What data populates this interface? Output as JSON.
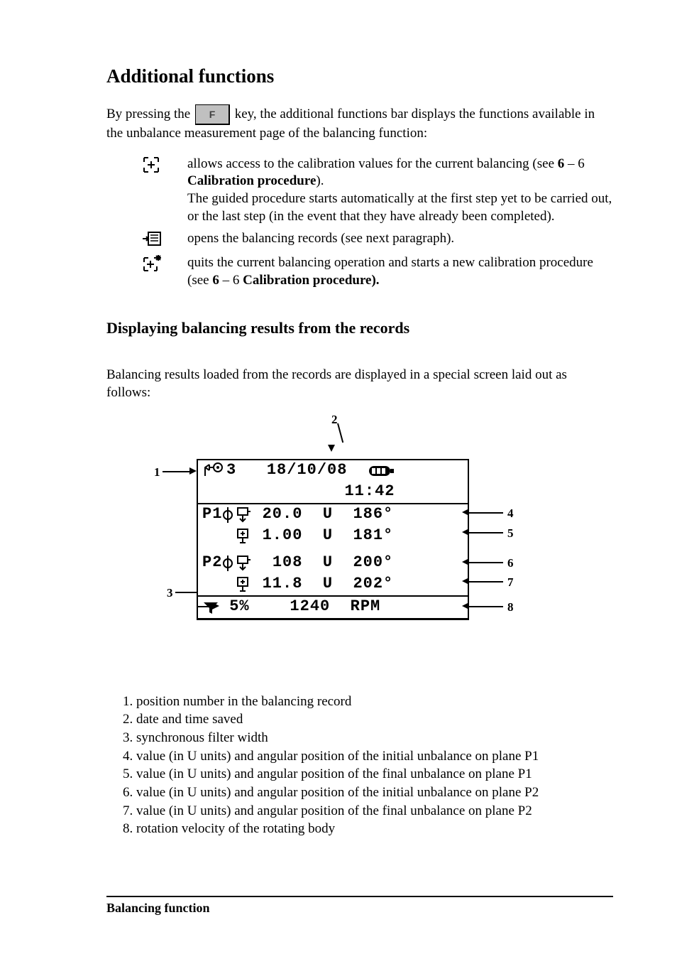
{
  "title": "Additional functions",
  "intro": {
    "before_key": "By pressing the ",
    "key_label": "F",
    "after_key": " key,  the additional functions bar displays the functions available in the unbalance measurement page of the balancing function:"
  },
  "functions": [
    {
      "icon": "crosshair-icon",
      "html": "allows access to the calibration values for the current balancing (see <b>6</b> – 6 <b>Calibration procedure</b>).<br>The guided procedure starts automatically at the first step yet to be carried out, or the last step (in the event that they have already been completed)."
    },
    {
      "icon": "records-icon",
      "html": "opens the balancing records (see next paragraph)."
    },
    {
      "icon": "crosshair-star-icon",
      "html": "quits the current balancing operation and starts a new calibration procedure (see <b>6</b> – 6 <b>Calibration procedure).</b>"
    }
  ],
  "subheading": "Displaying balancing results from the records",
  "display_intro": "Balancing results loaded from the records are displayed in a special screen laid out as follows:",
  "lcd": {
    "record_num": "3",
    "date": "18/10/08",
    "time": "11:42",
    "p1_initial_value": "20.0",
    "p1_initial_unit": "U",
    "p1_initial_angle": "186°",
    "p1_final_value": "1.00",
    "p1_final_unit": "U",
    "p1_final_angle": "181°",
    "p2_initial_value": "108",
    "p2_initial_unit": "U",
    "p2_initial_angle": "200°",
    "p2_final_value": "11.8",
    "p2_final_unit": "U",
    "p2_final_angle": "202°",
    "filter_width": "5%",
    "rpm_value": "1240",
    "rpm_label": "RPM"
  },
  "callouts": [
    "1",
    "2",
    "3",
    "4",
    "5",
    "6",
    "7",
    "8"
  ],
  "legend": [
    "position number in the balancing record",
    "date and time saved",
    "synchronous filter width",
    "value (in U units) and angular position of the initial unbalance on plane P1",
    "value (in U units) and angular position of the final unbalance on plane P1",
    "value (in U units) and angular position of the initial unbalance on plane P2",
    "value (in U units) and angular position of the final unbalance on plane P2",
    "rotation velocity of the rotating body"
  ],
  "footer": "Balancing function",
  "colors": {
    "text": "#000000",
    "background": "#ffffff",
    "key_bg": "#c0c0c0"
  }
}
